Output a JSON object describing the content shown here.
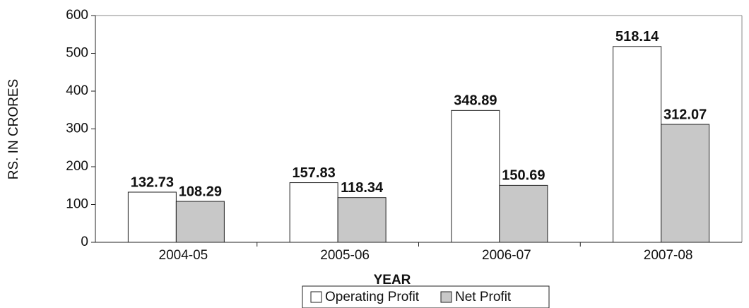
{
  "chart_data": {
    "type": "bar",
    "categories": [
      "2004-05",
      "2005-06",
      "2006-07",
      "2007-08"
    ],
    "series": [
      {
        "name": "Operating Profit",
        "color": "#ffffff",
        "values": [
          132.73,
          157.83,
          348.89,
          518.14
        ]
      },
      {
        "name": "Net Profit",
        "color": "#c8c8c8",
        "values": [
          108.29,
          118.34,
          150.69,
          312.07
        ]
      }
    ],
    "x_label": "YEAR",
    "y_label": "RS. IN CRORES",
    "ylim": [
      0,
      600
    ],
    "yticks": [
      0,
      100,
      200,
      300,
      400,
      500,
      600
    ]
  }
}
